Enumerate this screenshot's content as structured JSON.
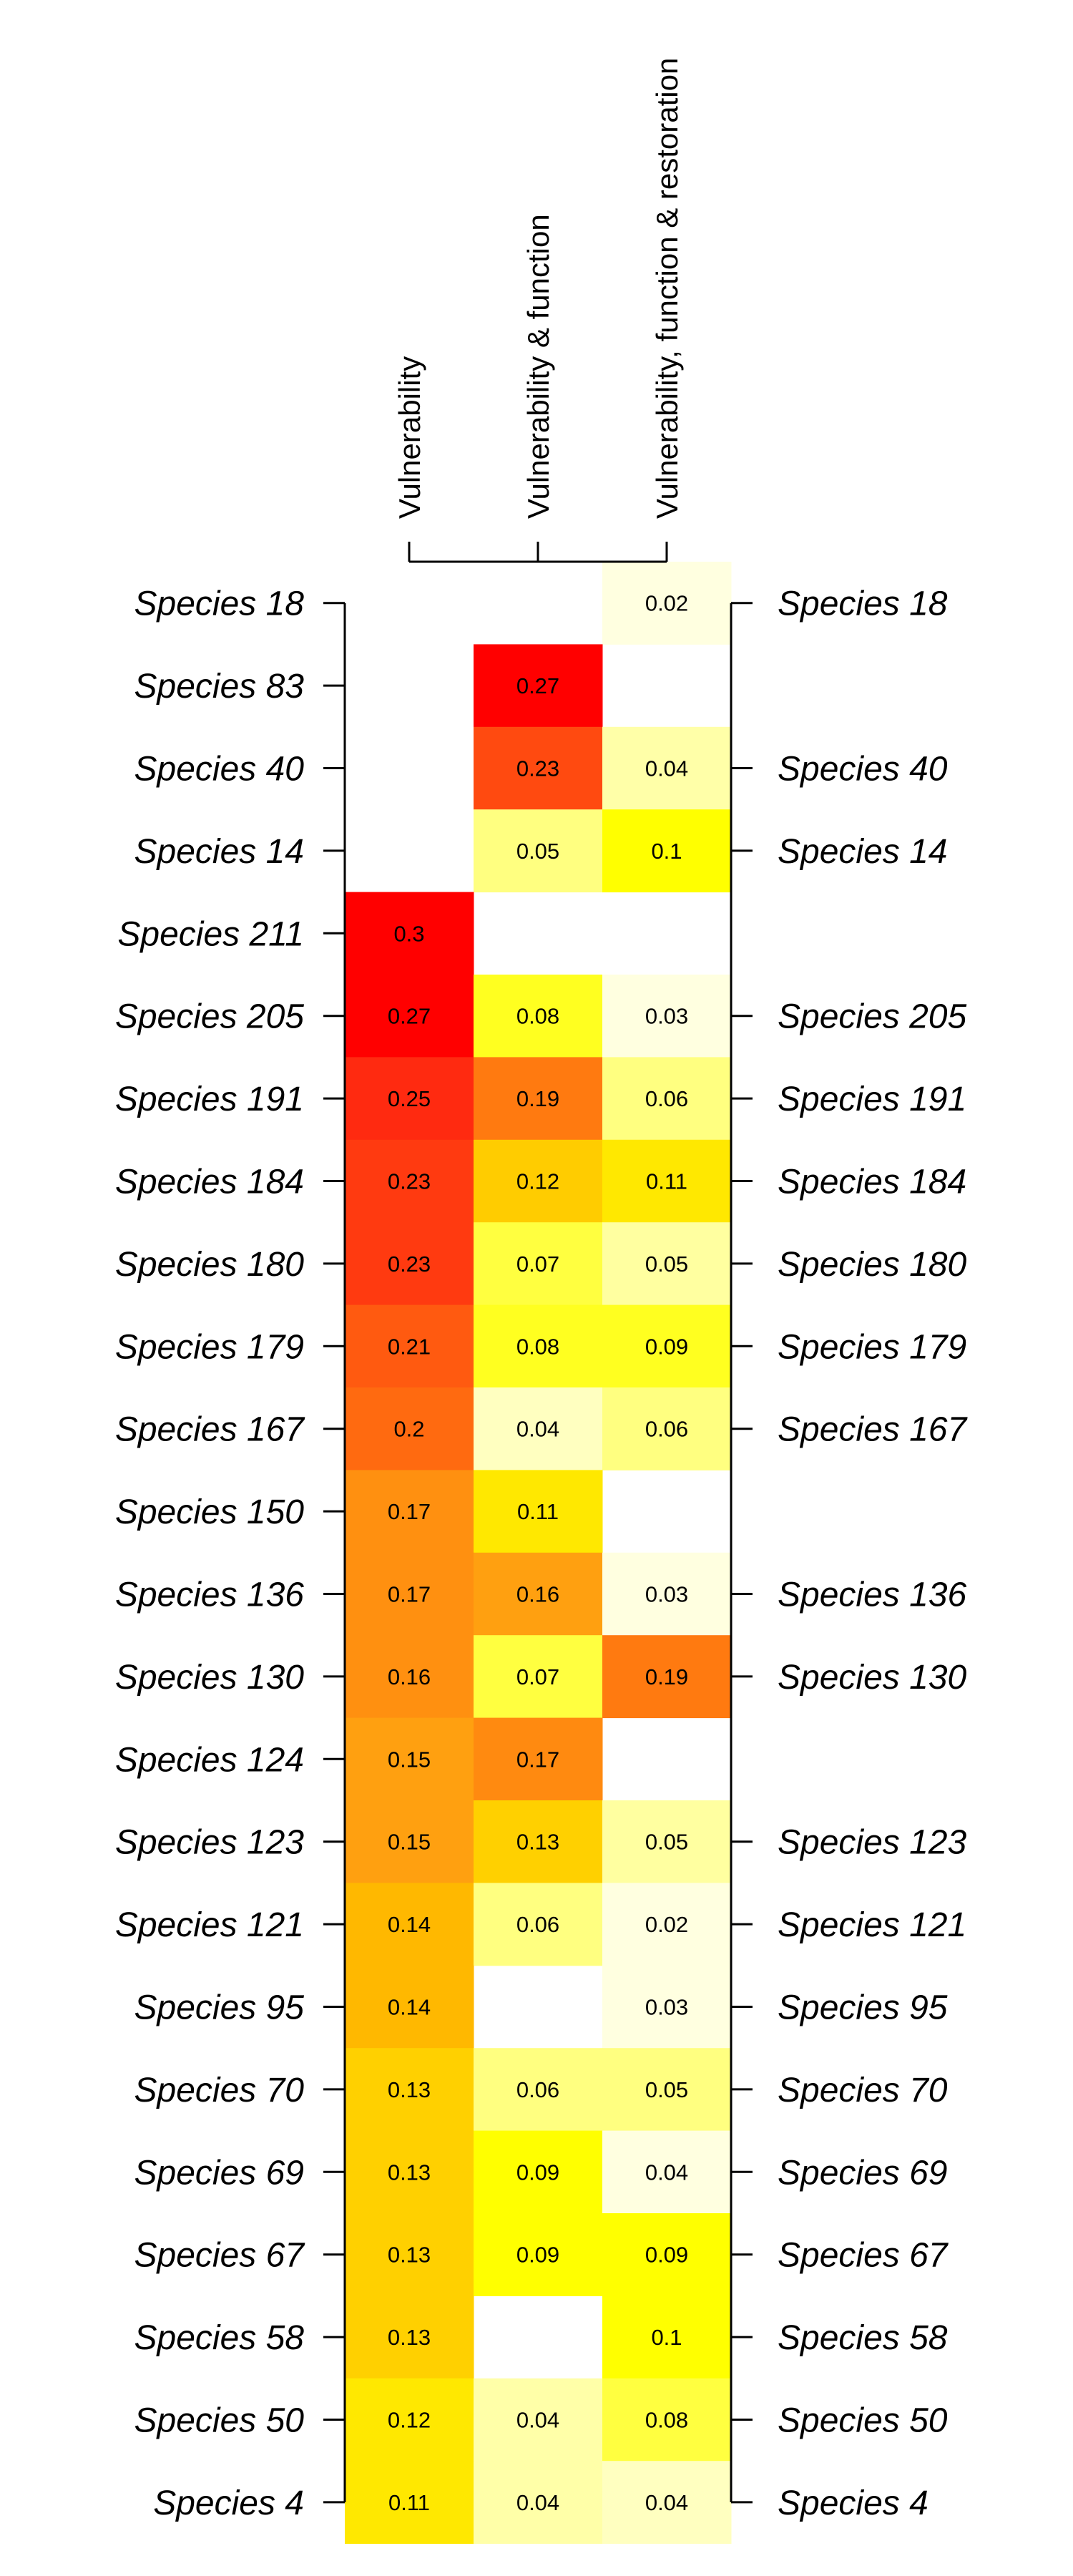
{
  "chart_data": {
    "type": "heatmap",
    "title": "",
    "xlabel": "",
    "ylabel": "",
    "columns": [
      "Vulnerability",
      "Vulnerability & function",
      "Vulnerability, function & restoration"
    ],
    "rows": [
      "Species 18",
      "Species 83",
      "Species 40",
      "Species 14",
      "Species 211",
      "Species 205",
      "Species 191",
      "Species 184",
      "Species 180",
      "Species 179",
      "Species 167",
      "Species 150",
      "Species 136",
      "Species 130",
      "Species 124",
      "Species 123",
      "Species 121",
      "Species 95",
      "Species 70",
      "Species 69",
      "Species 67",
      "Species 58",
      "Species 50",
      "Species 4"
    ],
    "right_labels": [
      "Species 18",
      "",
      "Species 40",
      "Species 14",
      "",
      "Species 205",
      "Species 191",
      "Species 184",
      "Species 180",
      "Species 179",
      "Species 167",
      "",
      "Species 136",
      "Species 130",
      "",
      "Species 123",
      "Species 121",
      "Species 95",
      "Species 70",
      "Species 69",
      "Species 67",
      "Species 58",
      "Species 50",
      "Species 4"
    ],
    "values": [
      [
        null,
        null,
        0.02
      ],
      [
        null,
        0.27,
        null
      ],
      [
        null,
        0.23,
        0.04
      ],
      [
        null,
        0.05,
        0.1
      ],
      [
        0.3,
        null,
        null
      ],
      [
        0.27,
        0.08,
        0.03
      ],
      [
        0.25,
        0.19,
        0.06
      ],
      [
        0.23,
        0.12,
        0.11
      ],
      [
        0.23,
        0.07,
        0.05
      ],
      [
        0.21,
        0.08,
        0.09
      ],
      [
        0.2,
        0.04,
        0.06
      ],
      [
        0.17,
        0.11,
        null
      ],
      [
        0.17,
        0.16,
        0.03
      ],
      [
        0.16,
        0.07,
        0.19
      ],
      [
        0.15,
        0.17,
        null
      ],
      [
        0.15,
        0.13,
        0.05
      ],
      [
        0.14,
        0.06,
        0.02
      ],
      [
        0.14,
        null,
        0.03
      ],
      [
        0.13,
        0.06,
        0.05
      ],
      [
        0.13,
        0.09,
        0.04
      ],
      [
        0.13,
        0.09,
        0.09
      ],
      [
        0.13,
        null,
        0.1
      ],
      [
        0.12,
        0.04,
        0.08
      ],
      [
        0.11,
        0.04,
        0.04
      ]
    ],
    "cell_colors": [
      [
        null,
        null,
        "#FFFFE0"
      ],
      [
        null,
        "#FF0000",
        null
      ],
      [
        null,
        "#FF4A10",
        "#FFFFA8"
      ],
      [
        null,
        "#FFFF80",
        "#FFFF00"
      ],
      [
        "#FF0000",
        null,
        null
      ],
      [
        "#FF0000",
        "#FFFF20",
        "#FFFFE0"
      ],
      [
        "#FF2A10",
        "#FF7A10",
        "#FFFF80"
      ],
      [
        "#FF3A10",
        "#FFCC00",
        "#FFE800"
      ],
      [
        "#FF3A10",
        "#FFFF40",
        "#FFFFA0"
      ],
      [
        "#FF5A10",
        "#FFFF20",
        "#FFFF20"
      ],
      [
        "#FF6A10",
        "#FFFFC0",
        "#FFFF80"
      ],
      [
        "#FF9010",
        "#FFE800",
        null
      ],
      [
        "#FF9010",
        "#FFA010",
        "#FFFFE0"
      ],
      [
        "#FF9010",
        "#FFFF40",
        "#FF7A10"
      ],
      [
        "#FFA010",
        "#FF8A10",
        null
      ],
      [
        "#FFA010",
        "#FFD000",
        "#FFFFA0"
      ],
      [
        "#FFB800",
        "#FFFF80",
        "#FFFFE0"
      ],
      [
        "#FFB800",
        null,
        "#FFFFE0"
      ],
      [
        "#FFD000",
        "#FFFF80",
        "#FFFF80"
      ],
      [
        "#FFD000",
        "#FFFF00",
        "#FFFFE0"
      ],
      [
        "#FFD000",
        "#FFFF00",
        "#FFFF00"
      ],
      [
        "#FFD000",
        null,
        "#FFFF00"
      ],
      [
        "#FFE800",
        "#FFFFA8",
        "#FFFF40"
      ],
      [
        "#FFE800",
        "#FFFFA8",
        "#FFFFC0"
      ]
    ],
    "grid": false,
    "legend": "none"
  }
}
